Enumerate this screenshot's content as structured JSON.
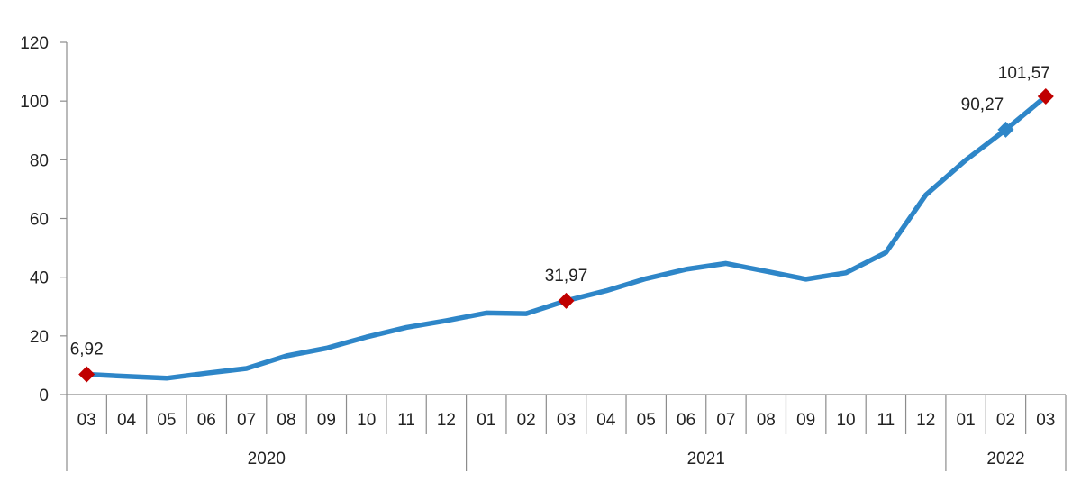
{
  "chart_data": {
    "type": "line",
    "title": "",
    "xlabel": "",
    "ylabel": "",
    "ylim": [
      0,
      120
    ],
    "yticks": [
      "0",
      "20",
      "40",
      "60",
      "80",
      "100",
      "120"
    ],
    "grid": false,
    "legend": "none",
    "categories": [
      "03",
      "04",
      "05",
      "06",
      "07",
      "08",
      "09",
      "10",
      "11",
      "12",
      "01",
      "02",
      "03",
      "04",
      "05",
      "06",
      "07",
      "08",
      "09",
      "10",
      "11",
      "12",
      "01",
      "02",
      "03"
    ],
    "year_groups": [
      {
        "label": "2020",
        "start": 0,
        "end": 9
      },
      {
        "label": "2021",
        "start": 10,
        "end": 21
      },
      {
        "label": "2022",
        "start": 22,
        "end": 24
      }
    ],
    "series": [
      {
        "color": "#2e86c8",
        "values": [
          6.92,
          6.2,
          5.6,
          7.3,
          8.9,
          13.2,
          15.8,
          19.6,
          22.9,
          25.2,
          27.8,
          27.6,
          31.97,
          35.4,
          39.5,
          42.7,
          44.7,
          42.0,
          39.3,
          41.5,
          48.4,
          68.0,
          79.9,
          90.27,
          101.57
        ]
      }
    ],
    "annotations": [
      {
        "index": 0,
        "text": "6,92",
        "marker": "diamond",
        "color": "#c00000"
      },
      {
        "index": 12,
        "text": "31,97",
        "marker": "diamond",
        "color": "#c00000"
      },
      {
        "index": 23,
        "text": "90,27",
        "marker": "diamond",
        "color": "#2e86c8"
      },
      {
        "index": 24,
        "text": "101,57",
        "marker": "diamond",
        "color": "#c00000"
      }
    ]
  }
}
